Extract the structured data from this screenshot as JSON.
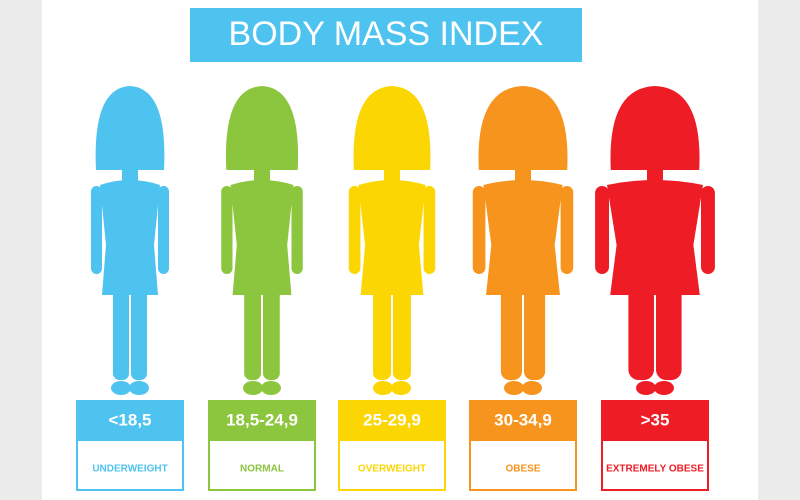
{
  "title": "BODY MASS INDEX",
  "categories": [
    {
      "range": "<18,5",
      "label": "UNDERWEIGHT"
    },
    {
      "range": "18,5-24,9",
      "label": "NORMAL"
    },
    {
      "range": "25-29,9",
      "label": "OVERWEIGHT"
    },
    {
      "range": "30-34,9",
      "label": "OBESE"
    },
    {
      "range": ">35",
      "label": "EXTREMELY OBESE"
    }
  ]
}
